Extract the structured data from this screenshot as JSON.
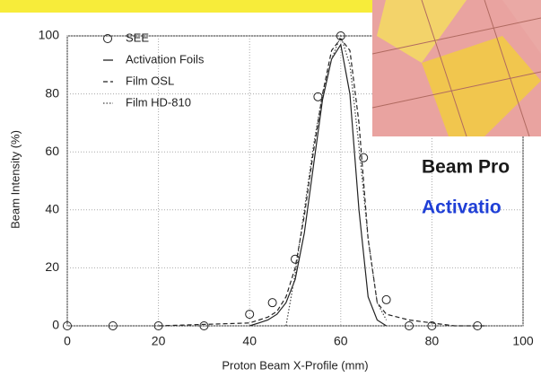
{
  "chart_data": {
    "type": "line",
    "xlabel": "Proton Beam X-Profile (mm)",
    "ylabel": "Beam Intensity (%)",
    "xlim": [
      0,
      100
    ],
    "ylim": [
      0,
      100
    ],
    "xticks": [
      0,
      20,
      40,
      60,
      80,
      100
    ],
    "yticks": [
      0,
      20,
      40,
      60,
      80,
      100
    ],
    "grid": true,
    "legend": "upper left",
    "series": [
      {
        "name": "SEE",
        "color": "#222222",
        "marker": "circle",
        "linestyle": "none",
        "x": [
          0,
          10,
          20,
          30,
          40,
          45,
          50,
          55,
          60,
          65,
          70,
          75,
          80,
          90
        ],
        "values": [
          0,
          0,
          0,
          0,
          4,
          8,
          23,
          79,
          100,
          58,
          9,
          0,
          0,
          0
        ]
      },
      {
        "name": "Activation Foils",
        "color": "#222222",
        "linestyle": "solid",
        "x": [
          40,
          42,
          44,
          46,
          48,
          50,
          52,
          54,
          56,
          58,
          60,
          62,
          64,
          66,
          68,
          70
        ],
        "values": [
          0,
          1,
          2,
          4,
          8,
          16,
          32,
          55,
          78,
          92,
          97,
          80,
          40,
          10,
          2,
          0
        ]
      },
      {
        "name": "Film OSL",
        "color": "#222222",
        "linestyle": "dashed",
        "x": [
          20,
          40,
          44,
          46,
          48,
          50,
          52,
          54,
          56,
          58,
          60,
          62,
          64,
          66,
          68,
          70,
          75,
          80,
          85,
          92
        ],
        "values": [
          0,
          1,
          3,
          5,
          10,
          20,
          38,
          60,
          80,
          95,
          99,
          95,
          70,
          30,
          8,
          4,
          2,
          1,
          0,
          0
        ]
      },
      {
        "name": "Film HD-810",
        "color": "#444444",
        "linestyle": "dotted",
        "x": [
          48,
          50,
          52,
          54,
          56,
          58,
          60,
          62,
          64,
          66,
          68,
          70
        ],
        "values": [
          0,
          18,
          40,
          62,
          80,
          92,
          100,
          90,
          62,
          30,
          8,
          2
        ]
      }
    ]
  },
  "slide": {
    "heading": "Beam Pro",
    "subheading": "Activatio"
  }
}
